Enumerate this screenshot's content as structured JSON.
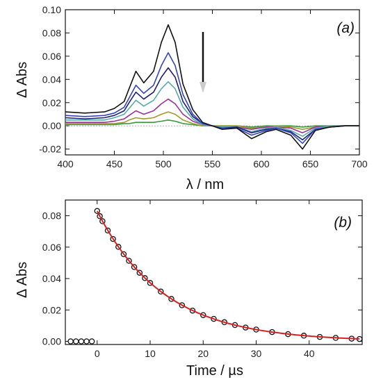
{
  "chart_data": [
    {
      "type": "line",
      "panel_label": "(a)",
      "xlabel": "λ / nm",
      "ylabel": "Δ Abs",
      "xlim": [
        400,
        700
      ],
      "ylim": [
        -0.025,
        0.1
      ],
      "xticks": [
        400,
        450,
        500,
        550,
        600,
        650,
        700
      ],
      "yticks": [
        -0.02,
        0.0,
        0.02,
        0.04,
        0.06,
        0.08,
        0.1
      ],
      "tick_labels_x": [
        "400",
        "450",
        "500",
        "550",
        "600",
        "650",
        "700"
      ],
      "tick_labels_y": [
        "-0.02",
        "0.00",
        "0.02",
        "0.04",
        "0.06",
        "0.08",
        "0.10"
      ],
      "annotation": "arrow pointing down (decay over time)",
      "x": [
        400,
        420,
        440,
        450,
        460,
        465,
        472,
        480,
        490,
        498,
        505,
        512,
        520,
        530,
        540,
        550,
        560,
        575,
        590,
        605,
        615,
        630,
        642,
        655,
        670,
        685,
        700
      ],
      "series": [
        {
          "color": "#111111",
          "values": [
            0.012,
            0.011,
            0.012,
            0.015,
            0.021,
            0.032,
            0.047,
            0.037,
            0.047,
            0.072,
            0.087,
            0.072,
            0.036,
            0.014,
            0.003,
            0.0,
            -0.003,
            -0.002,
            -0.011,
            -0.005,
            -0.003,
            -0.008,
            -0.02,
            -0.004,
            -0.001,
            0.0,
            0.0
          ]
        },
        {
          "color": "#3344bb",
          "values": [
            0.009,
            0.008,
            0.009,
            0.011,
            0.016,
            0.024,
            0.035,
            0.028,
            0.035,
            0.052,
            0.063,
            0.052,
            0.027,
            0.01,
            0.002,
            0.0,
            -0.002,
            -0.002,
            -0.008,
            -0.004,
            -0.002,
            -0.006,
            -0.015,
            -0.003,
            -0.001,
            0.0,
            0.0
          ]
        },
        {
          "color": "#1b1f7a",
          "values": [
            0.007,
            0.006,
            0.007,
            0.009,
            0.013,
            0.02,
            0.029,
            0.023,
            0.029,
            0.042,
            0.05,
            0.042,
            0.021,
            0.008,
            0.002,
            0.0,
            -0.002,
            -0.001,
            -0.006,
            -0.003,
            -0.002,
            -0.005,
            -0.012,
            -0.003,
            -0.001,
            0.0,
            0.0
          ]
        },
        {
          "color": "#55aaaa",
          "values": [
            0.005,
            0.005,
            0.005,
            0.007,
            0.01,
            0.015,
            0.022,
            0.017,
            0.022,
            0.032,
            0.038,
            0.032,
            0.016,
            0.006,
            0.001,
            0.0,
            -0.001,
            -0.001,
            -0.005,
            -0.002,
            -0.001,
            -0.004,
            -0.009,
            -0.002,
            0.0,
            0.0,
            0.0
          ]
        },
        {
          "color": "#9a3399",
          "values": [
            0.003,
            0.003,
            0.003,
            0.004,
            0.006,
            0.009,
            0.013,
            0.01,
            0.013,
            0.019,
            0.023,
            0.019,
            0.01,
            0.004,
            0.001,
            0.0,
            -0.001,
            -0.001,
            -0.003,
            -0.001,
            -0.001,
            -0.002,
            -0.006,
            -0.001,
            0.0,
            0.0,
            0.0
          ]
        },
        {
          "color": "#a09a2a",
          "values": [
            0.002,
            0.002,
            0.002,
            0.002,
            0.003,
            0.005,
            0.007,
            0.006,
            0.007,
            0.01,
            0.012,
            0.01,
            0.005,
            0.002,
            0.0,
            0.0,
            0.0,
            0.0,
            -0.002,
            -0.001,
            0.0,
            -0.001,
            -0.003,
            -0.001,
            0.0,
            0.0,
            0.0
          ]
        },
        {
          "color": "#3a9a3a",
          "values": [
            0.001,
            0.001,
            0.001,
            0.001,
            0.002,
            0.002,
            0.003,
            0.003,
            0.003,
            0.004,
            0.005,
            0.004,
            0.002,
            0.001,
            0.0,
            0.0,
            0.0,
            0.0,
            -0.001,
            0.0,
            0.0,
            0.0,
            -0.001,
            0.0,
            0.0,
            0.0,
            0.0
          ]
        }
      ]
    },
    {
      "type": "scatter",
      "panel_label": "(b)",
      "xlabel": "Time / µs",
      "ylabel": "Δ Abs",
      "xlim": [
        -6,
        50
      ],
      "ylim": [
        -0.002,
        0.09
      ],
      "xticks": [
        0,
        10,
        20,
        30,
        40
      ],
      "yticks": [
        0.0,
        0.02,
        0.04,
        0.06,
        0.08
      ],
      "tick_labels_x": [
        "0",
        "10",
        "20",
        "30",
        "40"
      ],
      "tick_labels_y": [
        "0.00",
        "0.02",
        "0.04",
        "0.06",
        "0.08"
      ],
      "data_points": {
        "name": "",
        "marker": "open circle",
        "color": "#111111",
        "x": [
          -5,
          -4,
          -3,
          -2,
          -1,
          0,
          0.5,
          1,
          2,
          3,
          4,
          5,
          6,
          7,
          8,
          9,
          10,
          12,
          14,
          16,
          18,
          20,
          22,
          24,
          26,
          28,
          30,
          33,
          36,
          39,
          42,
          45,
          48,
          49.5
        ],
        "y": [
          0.0,
          0.0,
          0.0,
          0.0,
          0.0,
          0.083,
          0.0797,
          0.0765,
          0.0706,
          0.0652,
          0.0602,
          0.0555,
          0.0513,
          0.0473,
          0.0437,
          0.0403,
          0.0372,
          0.0317,
          0.027,
          0.023,
          0.0196,
          0.0167,
          0.0143,
          0.0122,
          0.0104,
          0.0088,
          0.0075,
          0.0059,
          0.0046,
          0.0036,
          0.0028,
          0.0022,
          0.0017,
          0.0015
        ]
      },
      "fit": {
        "name": "",
        "color": "#d42020",
        "form": "exponential decay",
        "x_start": 0,
        "x_end": 49.5,
        "amplitude": 0.083,
        "tau_us": 12.5
      }
    }
  ]
}
